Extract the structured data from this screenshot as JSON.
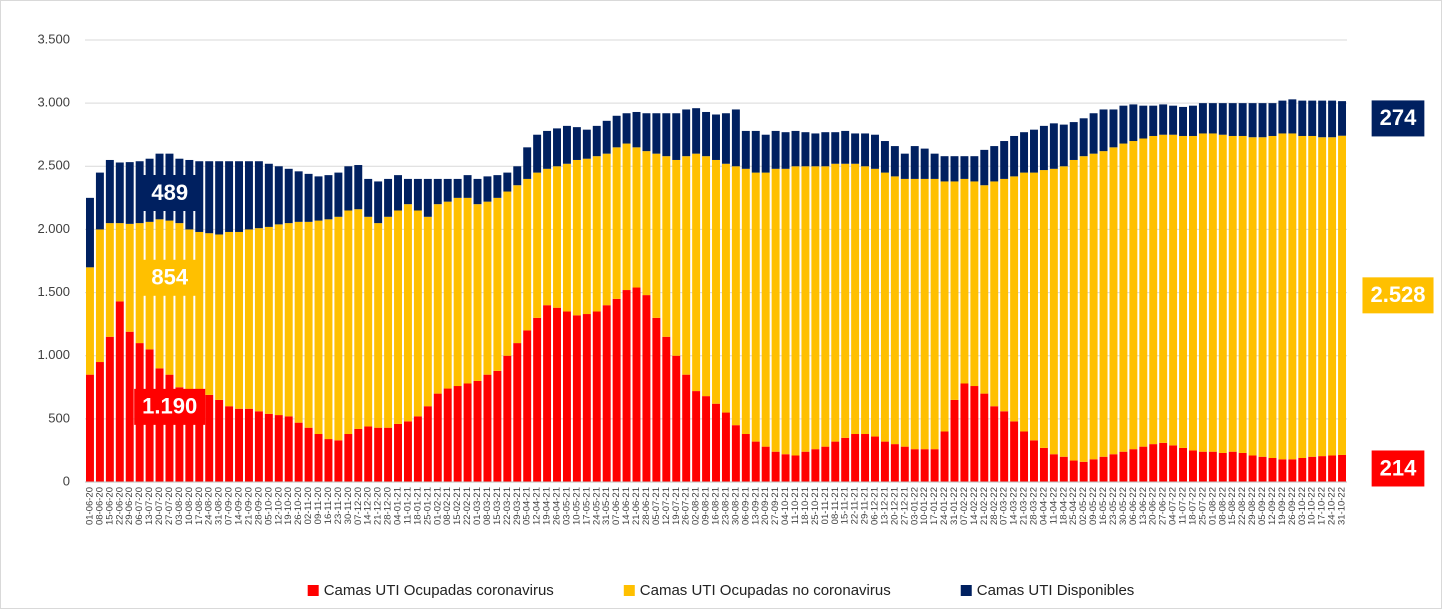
{
  "chart_data": {
    "type": "bar",
    "stacked": true,
    "grid": true,
    "legend": "bottom",
    "categories": [
      "01-06-20",
      "08-06-20",
      "15-06-20",
      "22-06-20",
      "29-06-20",
      "06-07-20",
      "13-07-20",
      "20-07-20",
      "27-07-20",
      "03-08-20",
      "10-08-20",
      "17-08-20",
      "24-08-20",
      "31-08-20",
      "07-09-20",
      "14-09-20",
      "21-09-20",
      "28-09-20",
      "05-10-20",
      "12-10-20",
      "19-10-20",
      "26-10-20",
      "02-11-20",
      "09-11-20",
      "16-11-20",
      "23-11-20",
      "30-11-20",
      "07-12-20",
      "14-12-20",
      "21-12-20",
      "28-12-20",
      "04-01-21",
      "11-01-21",
      "18-01-21",
      "25-01-21",
      "01-02-21",
      "08-02-21",
      "15-02-21",
      "22-02-21",
      "01-03-21",
      "08-03-21",
      "15-03-21",
      "22-03-21",
      "29-03-21",
      "05-04-21",
      "12-04-21",
      "19-04-21",
      "26-04-21",
      "03-05-21",
      "10-05-21",
      "17-05-21",
      "24-05-21",
      "31-05-21",
      "07-06-21",
      "14-06-21",
      "21-06-21",
      "28-06-21",
      "05-07-21",
      "12-07-21",
      "19-07-21",
      "26-07-21",
      "02-08-21",
      "09-08-21",
      "16-08-21",
      "23-08-21",
      "30-08-21",
      "06-09-21",
      "13-09-21",
      "20-09-21",
      "27-09-21",
      "04-10-21",
      "11-10-21",
      "18-10-21",
      "25-10-21",
      "01-11-21",
      "08-11-21",
      "15-11-21",
      "22-11-21",
      "29-11-21",
      "06-12-21",
      "13-12-21",
      "20-12-21",
      "27-12-21",
      "03-01-22",
      "10-01-22",
      "17-01-22",
      "24-01-22",
      "31-01-22",
      "07-02-22",
      "14-02-22",
      "21-02-22",
      "28-02-22",
      "07-03-22",
      "14-03-22",
      "21-03-22",
      "28-03-22",
      "04-04-22",
      "11-04-22",
      "18-04-22",
      "25-04-22",
      "02-05-22",
      "09-05-22",
      "16-05-22",
      "23-05-22",
      "30-05-22",
      "06-06-22",
      "13-06-22",
      "20-06-22",
      "27-06-22",
      "04-07-22",
      "11-07-22",
      "18-07-22",
      "25-07-22",
      "01-08-22",
      "08-08-22",
      "15-08-22",
      "22-08-22",
      "29-08-22",
      "05-09-22",
      "12-09-22",
      "19-09-22",
      "26-09-22",
      "03-10-22",
      "10-10-22",
      "17-10-22",
      "24-10-22",
      "31-10-22"
    ],
    "series": [
      {
        "name": "Camas UTI  Ocupadas coronavirus",
        "color": "#ff0000",
        "values": [
          850,
          950,
          1150,
          1430,
          1190,
          1100,
          1050,
          900,
          850,
          750,
          720,
          700,
          690,
          650,
          600,
          580,
          580,
          560,
          540,
          530,
          520,
          470,
          430,
          380,
          340,
          330,
          380,
          420,
          440,
          430,
          430,
          460,
          480,
          520,
          600,
          700,
          740,
          760,
          780,
          800,
          850,
          880,
          1000,
          1100,
          1200,
          1300,
          1400,
          1380,
          1350,
          1320,
          1330,
          1350,
          1400,
          1450,
          1520,
          1540,
          1480,
          1300,
          1150,
          1000,
          850,
          720,
          680,
          620,
          550,
          450,
          380,
          320,
          280,
          240,
          220,
          210,
          240,
          260,
          280,
          320,
          350,
          380,
          380,
          360,
          320,
          300,
          280,
          260,
          260,
          260,
          400,
          650,
          780,
          760,
          700,
          600,
          560,
          480,
          400,
          330,
          270,
          220,
          200,
          170,
          160,
          180,
          200,
          220,
          240,
          260,
          280,
          300,
          310,
          290,
          270,
          250,
          240,
          240,
          230,
          240,
          230,
          210,
          200,
          190,
          180,
          180,
          190,
          200,
          205,
          210,
          214
        ],
        "value_labels": [
          null,
          null,
          null,
          null,
          "1.190",
          null,
          null,
          null,
          null,
          null,
          null,
          null,
          null,
          null,
          null,
          null,
          null,
          null,
          null,
          null,
          null,
          null,
          null,
          null,
          null,
          null,
          null,
          null,
          null,
          null,
          null,
          null,
          null,
          null,
          null,
          null,
          null,
          null,
          null,
          null,
          null,
          null,
          null,
          null,
          null,
          null,
          null,
          null,
          null,
          null,
          null,
          null,
          null,
          null,
          null,
          null,
          null,
          null,
          null,
          null,
          null,
          null,
          null,
          null,
          null,
          null,
          null,
          null,
          null,
          null,
          null,
          null,
          null,
          null,
          null,
          null,
          null,
          null,
          null,
          null,
          null,
          null,
          null,
          null,
          null,
          null,
          null,
          null,
          null,
          null,
          null,
          null,
          null,
          null,
          null,
          null,
          null,
          null,
          null,
          null,
          null,
          null,
          null,
          null,
          null,
          null,
          null,
          null,
          null,
          null,
          null,
          null,
          null,
          null,
          null,
          null,
          null,
          null,
          null,
          null,
          null,
          null,
          null,
          null,
          null,
          null,
          "214"
        ]
      },
      {
        "name": "Camas UTI  Ocupadas no coronavirus",
        "color": "#ffc000",
        "values": [
          850,
          1050,
          900,
          620,
          854,
          950,
          1010,
          1180,
          1220,
          1300,
          1280,
          1280,
          1280,
          1310,
          1380,
          1400,
          1420,
          1450,
          1480,
          1510,
          1530,
          1590,
          1630,
          1690,
          1740,
          1770,
          1770,
          1740,
          1660,
          1620,
          1670,
          1690,
          1720,
          1630,
          1500,
          1500,
          1480,
          1490,
          1470,
          1400,
          1370,
          1370,
          1300,
          1250,
          1200,
          1150,
          1080,
          1120,
          1170,
          1230,
          1230,
          1230,
          1200,
          1200,
          1160,
          1110,
          1140,
          1300,
          1430,
          1550,
          1730,
          1880,
          1900,
          1930,
          1970,
          2050,
          2100,
          2130,
          2170,
          2240,
          2260,
          2290,
          2260,
          2240,
          2220,
          2200,
          2170,
          2140,
          2120,
          2120,
          2130,
          2120,
          2120,
          2140,
          2140,
          2140,
          1980,
          1730,
          1620,
          1620,
          1650,
          1780,
          1840,
          1940,
          2050,
          2120,
          2200,
          2260,
          2300,
          2380,
          2420,
          2420,
          2420,
          2430,
          2440,
          2440,
          2440,
          2440,
          2440,
          2460,
          2470,
          2490,
          2520,
          2520,
          2520,
          2500,
          2510,
          2520,
          2530,
          2550,
          2580,
          2580,
          2550,
          2540,
          2525,
          2520,
          2528
        ],
        "value_labels": [
          null,
          null,
          null,
          null,
          "854",
          null,
          null,
          null,
          null,
          null,
          null,
          null,
          null,
          null,
          null,
          null,
          null,
          null,
          null,
          null,
          null,
          null,
          null,
          null,
          null,
          null,
          null,
          null,
          null,
          null,
          null,
          null,
          null,
          null,
          null,
          null,
          null,
          null,
          null,
          null,
          null,
          null,
          null,
          null,
          null,
          null,
          null,
          null,
          null,
          null,
          null,
          null,
          null,
          null,
          null,
          null,
          null,
          null,
          null,
          null,
          null,
          null,
          null,
          null,
          null,
          null,
          null,
          null,
          null,
          null,
          null,
          null,
          null,
          null,
          null,
          null,
          null,
          null,
          null,
          null,
          null,
          null,
          null,
          null,
          null,
          null,
          null,
          null,
          null,
          null,
          null,
          null,
          null,
          null,
          null,
          null,
          null,
          null,
          null,
          null,
          null,
          null,
          null,
          null,
          null,
          null,
          null,
          null,
          null,
          null,
          null,
          null,
          null,
          null,
          null,
          null,
          null,
          null,
          null,
          null,
          null,
          null,
          null,
          null,
          null,
          null,
          "2.528"
        ]
      },
      {
        "name": "Camas UTI  Disponibles",
        "color": "#002060",
        "values": [
          550,
          450,
          500,
          480,
          489,
          490,
          500,
          520,
          530,
          510,
          550,
          560,
          570,
          580,
          560,
          560,
          540,
          530,
          500,
          460,
          430,
          400,
          380,
          350,
          350,
          350,
          350,
          350,
          300,
          330,
          300,
          280,
          200,
          250,
          300,
          200,
          180,
          150,
          180,
          200,
          200,
          180,
          150,
          150,
          250,
          300,
          300,
          300,
          300,
          260,
          230,
          240,
          260,
          250,
          240,
          280,
          300,
          320,
          340,
          370,
          370,
          360,
          350,
          360,
          400,
          450,
          300,
          330,
          300,
          300,
          290,
          280,
          270,
          260,
          270,
          250,
          260,
          240,
          260,
          270,
          250,
          240,
          200,
          260,
          240,
          200,
          200,
          200,
          180,
          200,
          280,
          280,
          300,
          320,
          320,
          340,
          350,
          360,
          330,
          300,
          300,
          320,
          330,
          300,
          300,
          290,
          260,
          240,
          240,
          230,
          230,
          240,
          240,
          240,
          250,
          260,
          260,
          270,
          270,
          260,
          260,
          270,
          280,
          280,
          290,
          290,
          274
        ],
        "value_labels": [
          null,
          null,
          null,
          null,
          "489",
          null,
          null,
          null,
          null,
          null,
          null,
          null,
          null,
          null,
          null,
          null,
          null,
          null,
          null,
          null,
          null,
          null,
          null,
          null,
          null,
          null,
          null,
          null,
          null,
          null,
          null,
          null,
          null,
          null,
          null,
          null,
          null,
          null,
          null,
          null,
          null,
          null,
          null,
          null,
          null,
          null,
          null,
          null,
          null,
          null,
          null,
          null,
          null,
          null,
          null,
          null,
          null,
          null,
          null,
          null,
          null,
          null,
          null,
          null,
          null,
          null,
          null,
          null,
          null,
          null,
          null,
          null,
          null,
          null,
          null,
          null,
          null,
          null,
          null,
          null,
          null,
          null,
          null,
          null,
          null,
          null,
          null,
          null,
          null,
          null,
          null,
          null,
          null,
          null,
          null,
          null,
          null,
          null,
          null,
          null,
          null,
          null,
          null,
          null,
          null,
          null,
          null,
          null,
          null,
          null,
          null,
          null,
          null,
          null,
          null,
          null,
          null,
          null,
          null,
          null,
          null,
          null,
          null,
          null,
          null,
          null,
          "274"
        ]
      }
    ],
    "ylim": [
      0,
      3500
    ],
    "yticks": [
      0,
      500,
      {
        "value": 1000,
        "label": "1.000"
      },
      {
        "value": 1500,
        "label": "1.500"
      },
      {
        "value": 2000,
        "label": "2.000"
      },
      {
        "value": 2500,
        "label": "2.500"
      },
      {
        "value": 3000,
        "label": "3.000"
      },
      {
        "value": 3500,
        "label": "3.500"
      }
    ]
  }
}
